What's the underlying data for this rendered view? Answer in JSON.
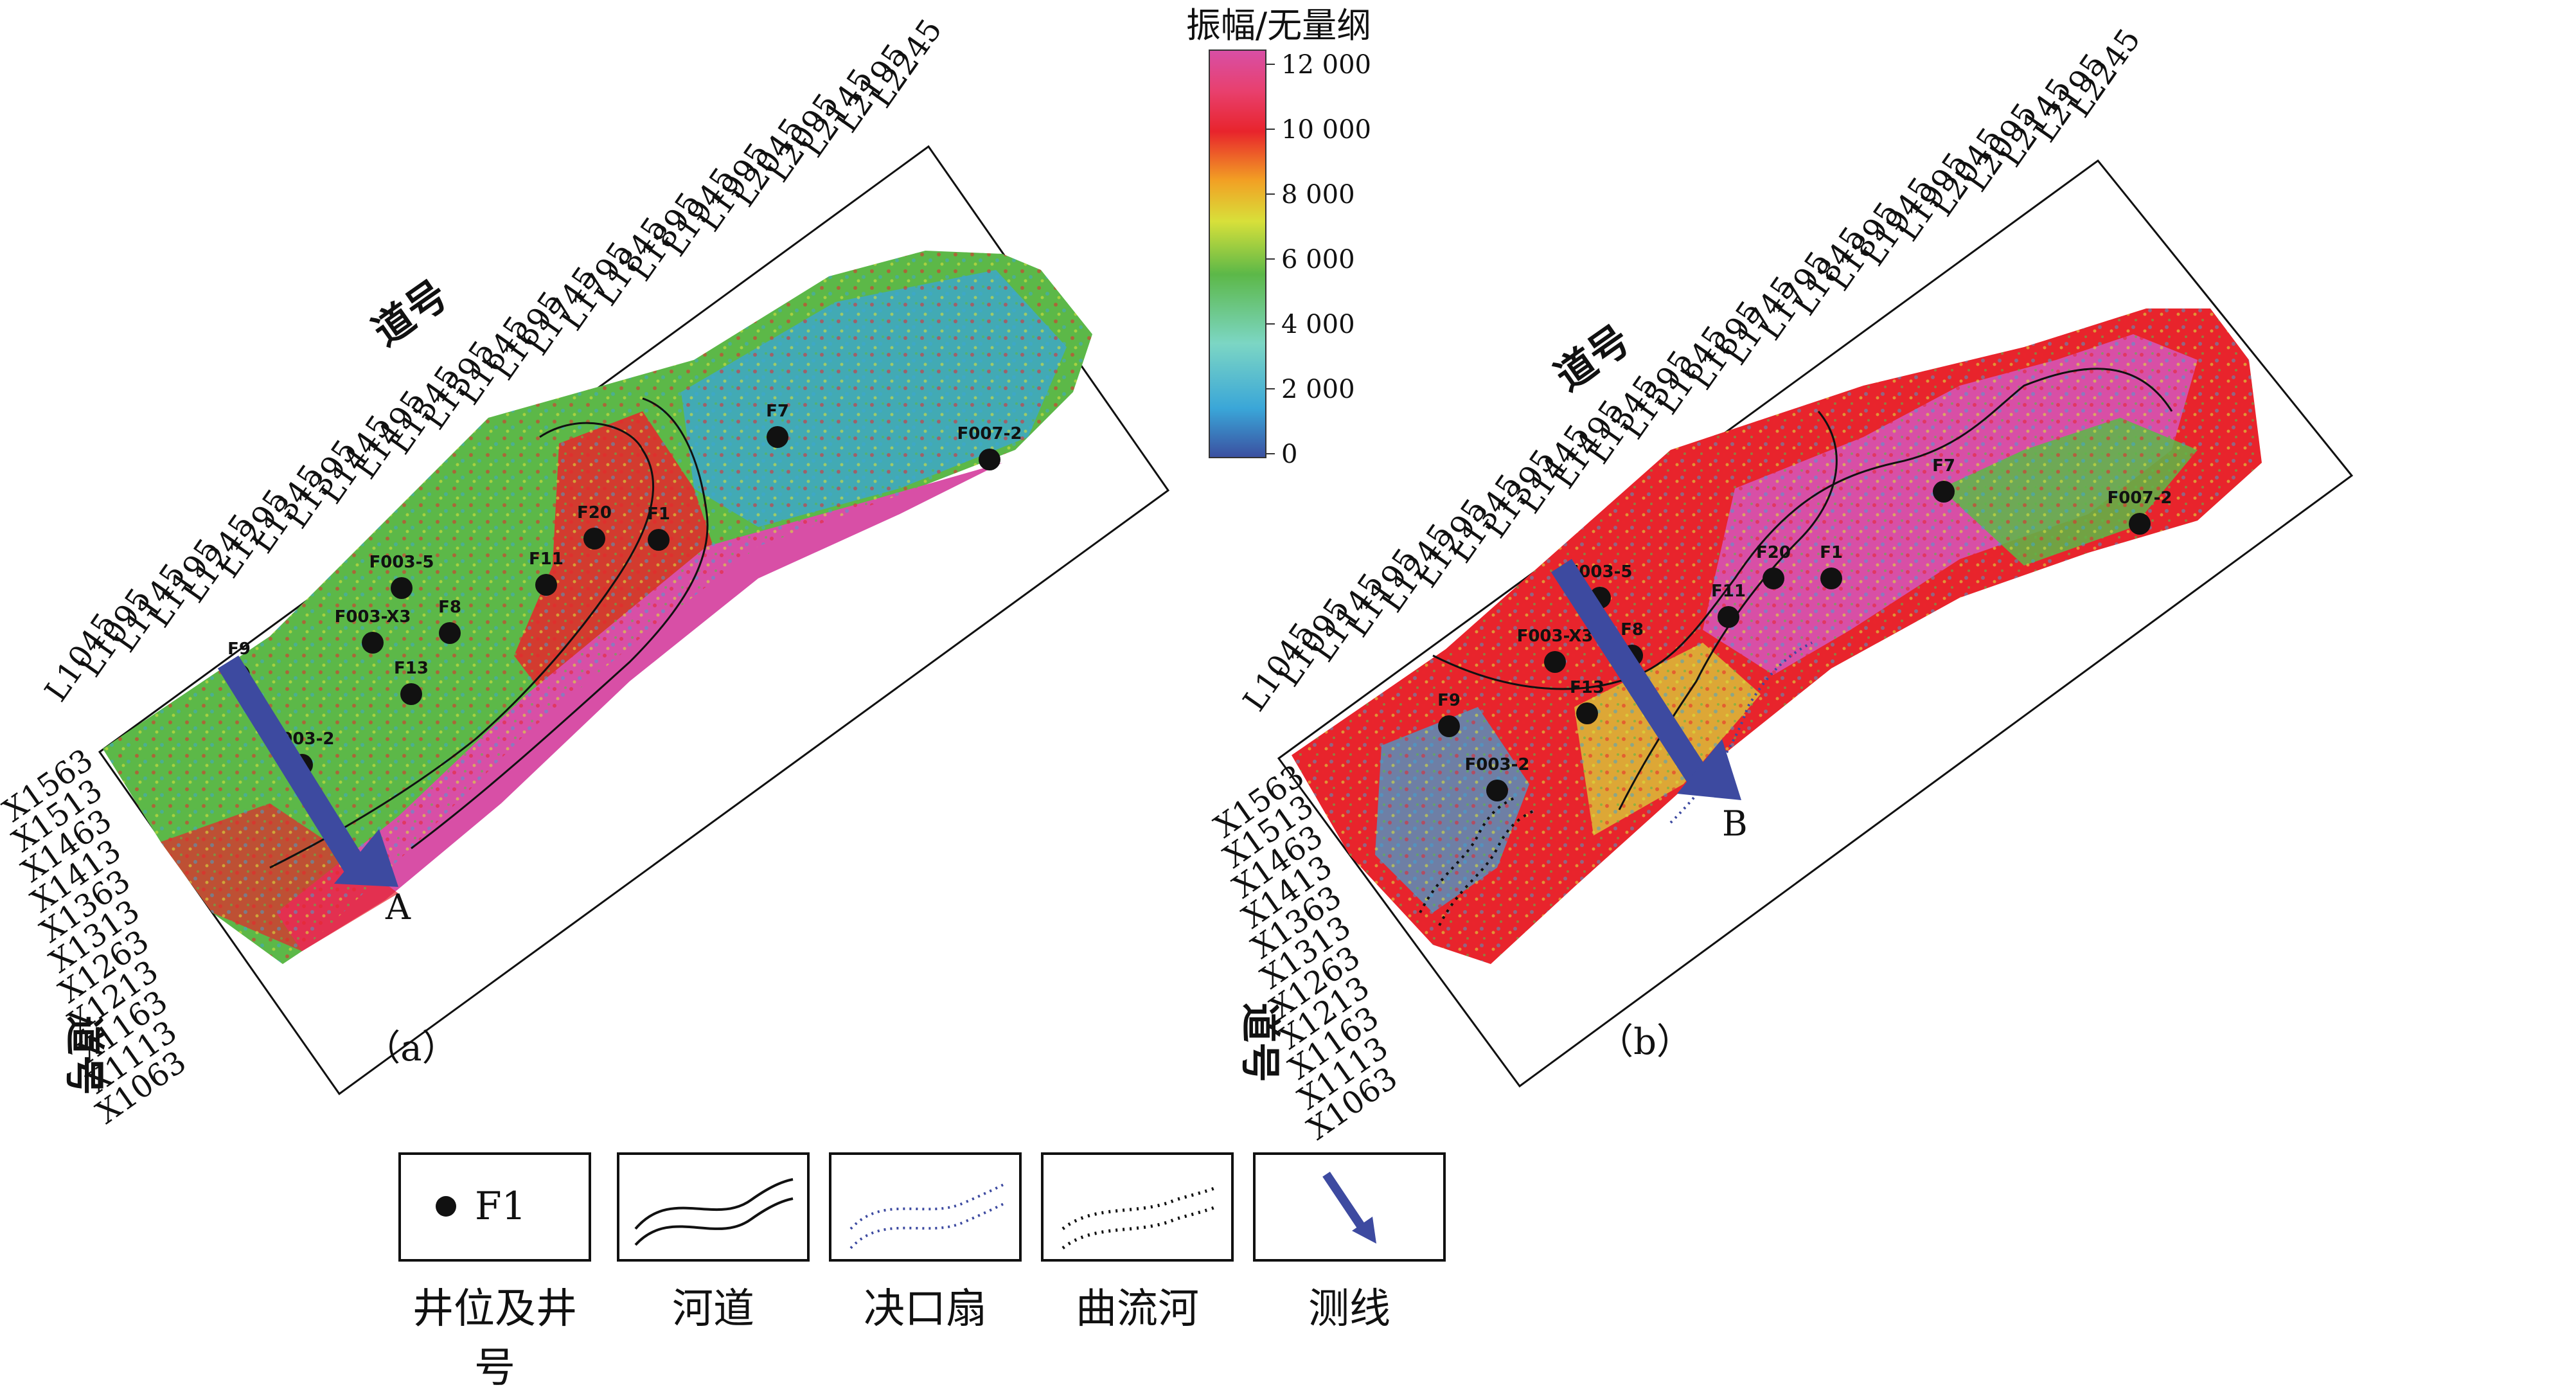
{
  "colorbar": {
    "title": "振幅/无量纲",
    "ticks": [
      "12 000",
      "10 000",
      "8 000",
      "6 000",
      "4 000",
      "2 000",
      "0"
    ],
    "colors": [
      "#3b4fa0",
      "#3aa6d8",
      "#7cd6c4",
      "#5cb848",
      "#d8e03a",
      "#f2a024",
      "#e8242c",
      "#e8406e",
      "#d84fa6"
    ]
  },
  "maps": [
    {
      "id": "a",
      "caption": "（a）",
      "axis_inline_title": "道号",
      "axis_crossline_title": "道号",
      "inlines": [
        "L1045",
        "L1095",
        "L1145",
        "L1195",
        "L1245",
        "L1295",
        "L1345",
        "L1395",
        "L1445",
        "L1495",
        "L1545",
        "L1595",
        "L1645",
        "L1695",
        "L1745",
        "L1795",
        "L1845",
        "L1895",
        "L1945",
        "L1995",
        "L2045",
        "L2095",
        "L2145",
        "L2195",
        "L2245"
      ],
      "crosslines": [
        "X1563",
        "X1513",
        "X1463",
        "X1413",
        "X1363",
        "X1313",
        "X1263",
        "X1213",
        "X1163",
        "X1113",
        "X1063"
      ],
      "wells": [
        "F9",
        "F003-2",
        "F13",
        "F003-X3",
        "F8",
        "F003-5",
        "F11",
        "F20",
        "F1",
        "F7",
        "F007-2"
      ],
      "line_label": "A"
    },
    {
      "id": "b",
      "caption": "（b）",
      "axis_inline_title": "道号",
      "axis_crossline_title": "道号",
      "inlines": [
        "L1045",
        "L1095",
        "L1145",
        "L1195",
        "L1245",
        "L1295",
        "L1345",
        "L1395",
        "L1445",
        "L1495",
        "L1545",
        "L1595",
        "L1645",
        "L1695",
        "L1745",
        "L1795",
        "L1845",
        "L1895",
        "L1945",
        "L1995",
        "L2045",
        "L2095",
        "L2145",
        "L2195",
        "L2245"
      ],
      "crosslines": [
        "X1563",
        "X1513",
        "X1463",
        "X1413",
        "X1363",
        "X1313",
        "X1263",
        "X1213",
        "X1163",
        "X1113",
        "X1063"
      ],
      "wells": [
        "F9",
        "F003-2",
        "F13",
        "F003-X3",
        "F8",
        "F003-5",
        "F11",
        "F20",
        "F1",
        "F7",
        "F007-2"
      ],
      "line_label": "B"
    }
  ],
  "legend": {
    "well_sample": "F1",
    "items": [
      "井位及井号",
      "河道",
      "决口扇",
      "曲流河",
      "测线"
    ]
  },
  "colors": {
    "arrow": "#3d4aa0",
    "frame": "#111111"
  }
}
